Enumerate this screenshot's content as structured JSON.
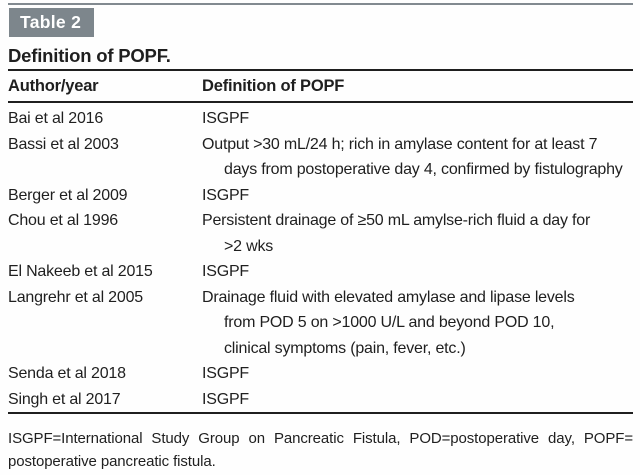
{
  "label": "Table 2",
  "title": "Definition of POPF.",
  "columns": {
    "author": "Author/year",
    "definition": "Definition of POPF"
  },
  "rows": [
    {
      "author": "Bai et al 2016",
      "lines": [
        "ISGPF"
      ]
    },
    {
      "author": "Bassi et al 2003",
      "lines": [
        "Output >30 mL/24 h; rich in amylase content for at least 7",
        "days from postoperative day 4, confirmed by fistulography"
      ]
    },
    {
      "author": "Berger et al 2009",
      "lines": [
        "ISGPF"
      ]
    },
    {
      "author": "Chou et al 1996",
      "lines": [
        "Persistent drainage of ≥50 mL amylse-rich fluid a day for",
        ">2 wks"
      ]
    },
    {
      "author": "El Nakeeb et al 2015",
      "lines": [
        "ISGPF"
      ]
    },
    {
      "author": "Langrehr et al 2005",
      "lines": [
        "Drainage fluid with elevated amylase and lipase levels",
        "from POD 5 on >1000 U/L and beyond POD 10,",
        "clinical symptoms (pain, fever, etc.)"
      ]
    },
    {
      "author": "Senda et al 2018",
      "lines": [
        "ISGPF"
      ]
    },
    {
      "author": "Singh et al 2017",
      "lines": [
        "ISGPF"
      ]
    }
  ],
  "footnote": {
    "line1": "ISGPF=International Study Group on Pancreatic Fistula, POD=postoperative day, POPF=",
    "line2": "postoperative pancreatic fistula."
  },
  "colors": {
    "label_bg": "#7d868c",
    "text": "#1f1f1f",
    "rule_dark": "#1f1f1f",
    "rule_gray": "#828a90",
    "page_bg": "#fefefe"
  }
}
